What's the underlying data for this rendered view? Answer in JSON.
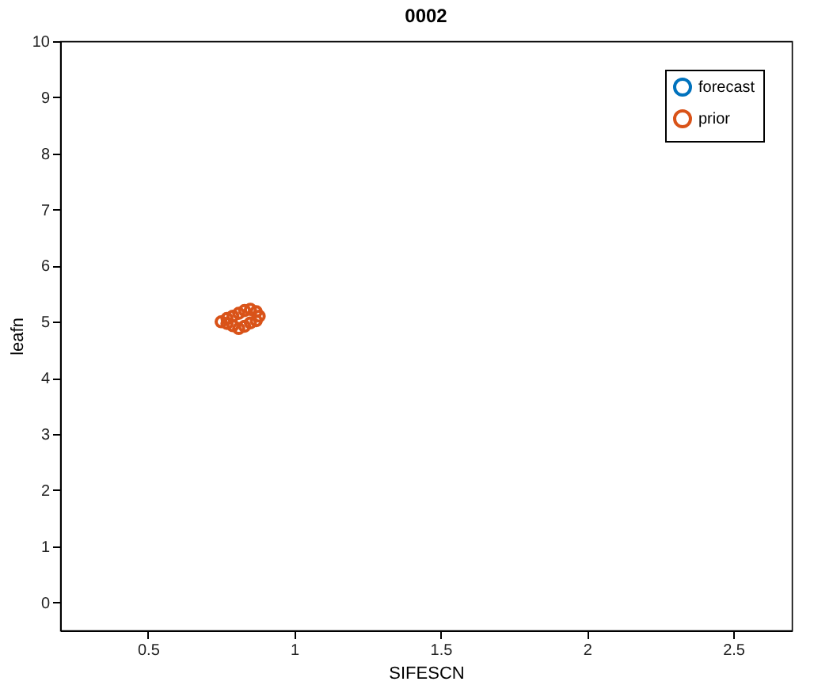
{
  "chart_data": {
    "type": "scatter",
    "title": "0002",
    "xlabel": "SIFESCN",
    "ylabel": "leafn",
    "xlim": [
      0.2,
      2.7
    ],
    "ylim": [
      -0.5,
      10
    ],
    "xticks": [
      0.5,
      1,
      1.5,
      2,
      2.5
    ],
    "yticks": [
      0,
      1,
      2,
      3,
      4,
      5,
      6,
      7,
      8,
      9,
      10
    ],
    "grid": false,
    "legend": "top right",
    "marker": "circle",
    "series": [
      {
        "name": "forecast",
        "color": "#0072bd",
        "x": [
          null
        ],
        "values": [
          null
        ]
      },
      {
        "name": "prior",
        "color": "#d95319",
        "x": [
          0.75,
          0.77,
          0.79,
          0.81,
          0.83,
          0.85,
          0.87,
          0.88,
          0.87,
          0.85,
          0.83,
          0.81,
          0.79,
          0.77
        ],
        "values": [
          5.0,
          5.06,
          5.1,
          5.15,
          5.2,
          5.22,
          5.18,
          5.1,
          5.02,
          4.98,
          4.92,
          4.88,
          4.93,
          4.97
        ]
      }
    ]
  }
}
